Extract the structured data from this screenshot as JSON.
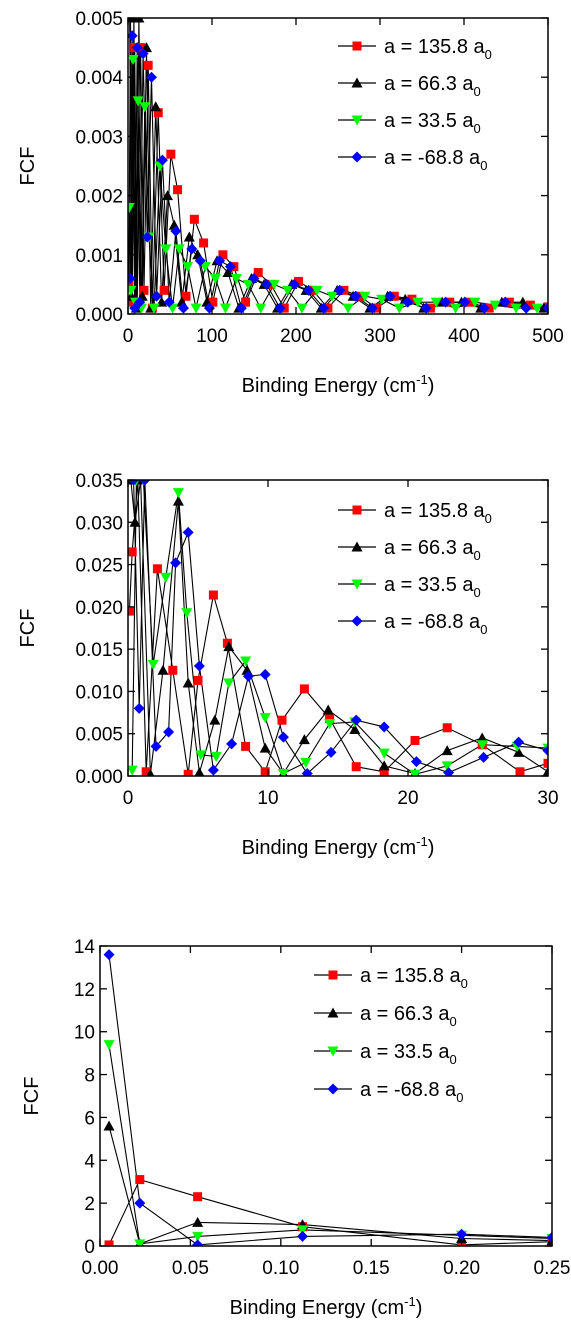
{
  "chart_data": [
    {
      "type": "line",
      "ylabel": "FCF",
      "xlabel": "Binding Energy (cm",
      "xlabel_sup": "-1",
      "xlabel_end": ")",
      "xlim": [
        0,
        500
      ],
      "ylim": [
        0,
        0.005
      ],
      "xticks": [
        0,
        100,
        200,
        300,
        400,
        500
      ],
      "xtick_labels": [
        "0",
        "100",
        "200",
        "300",
        "400",
        "500"
      ],
      "yticks": [
        0,
        0.001,
        0.002,
        0.003,
        0.004,
        0.005
      ],
      "ytick_labels": [
        "0.000",
        "0.001",
        "0.002",
        "0.003",
        "0.004",
        "0.005"
      ],
      "legend_position": "top-right",
      "series": [
        {
          "name": "a = 135.8 a",
          "name_sub": "0",
          "color": "#ff0000",
          "marker": "square",
          "x": [
            1,
            3,
            5,
            8,
            11,
            15,
            19,
            24,
            29,
            36,
            43,
            51,
            59,
            69,
            79,
            90,
            101,
            113,
            126,
            140,
            155,
            170,
            186,
            203,
            220,
            238,
            257,
            276,
            296,
            317,
            338,
            360,
            383,
            406,
            430,
            454,
            479,
            500
          ],
          "y": [
            0.0005,
            0.005,
            0.0002,
            0.0045,
            0.0001,
            0.0045,
            0.0004,
            0.0042,
            0.0001,
            0.0034,
            0.0004,
            0.0027,
            0.0021,
            0.0003,
            0.0016,
            0.0012,
            0.0002,
            0.001,
            0.0008,
            0.0002,
            0.0007,
            0.0005,
            0.0001,
            0.00055,
            0.0004,
            0.0001,
            0.0004,
            0.0003,
            0.0001,
            0.0003,
            0.00025,
            0.0001,
            0.0002,
            0.0002,
            0.0001,
            0.0002,
            0.00015,
            0.00012
          ]
        },
        {
          "name": "a = 66.3 a",
          "name_sub": "0",
          "color": "#000000",
          "marker": "triangle-up",
          "x": [
            2,
            4,
            7,
            10,
            13,
            17,
            22,
            27,
            33,
            40,
            47,
            55,
            64,
            73,
            83,
            94,
            106,
            119,
            132,
            147,
            162,
            178,
            195,
            212,
            230,
            249,
            268,
            288,
            309,
            330,
            352,
            374,
            397,
            420,
            445,
            470,
            495
          ],
          "y": [
            0.005,
            0.0003,
            0.005,
            0.0001,
            0.005,
            0.0003,
            0.0045,
            0.0001,
            0.0035,
            0.0002,
            0.002,
            0.0015,
            0.0002,
            0.0013,
            0.001,
            0.0002,
            0.0009,
            0.0007,
            0.0001,
            0.0006,
            0.0005,
            0.0001,
            0.0005,
            0.0004,
            0.0001,
            0.0004,
            0.0003,
            0.0001,
            0.0003,
            0.00025,
            0.0001,
            0.0002,
            0.0002,
            0.0001,
            0.0002,
            0.0002,
            0.0001
          ]
        },
        {
          "name": "a = 33.5 a",
          "name_sub": "0",
          "color": "#00ff00",
          "marker": "triangle-down",
          "x": [
            1.5,
            3.5,
            6,
            9,
            12,
            16,
            20,
            25,
            31,
            38,
            45,
            53,
            61,
            71,
            81,
            92,
            104,
            116,
            129,
            143,
            158,
            174,
            190,
            207,
            225,
            243,
            262,
            282,
            302,
            323,
            345,
            367,
            390,
            413,
            437,
            462,
            487
          ],
          "y": [
            0.0018,
            0.0004,
            0.0043,
            0.0002,
            0.0036,
            0.0001,
            0.0035,
            0.0013,
            0.0001,
            0.0025,
            0.0011,
            0.0001,
            0.0011,
            0.0008,
            0.0001,
            0.0008,
            0.0006,
            0.0001,
            0.0006,
            0.0005,
            0.0001,
            0.0005,
            0.0004,
            0.0001,
            0.0004,
            0.0003,
            0.0001,
            0.0003,
            0.00025,
            0.0001,
            0.0002,
            0.0002,
            0.0001,
            0.0002,
            0.00015,
            0.0001,
            0.0001
          ]
        },
        {
          "name": "a = -68.8 a",
          "name_sub": "0",
          "color": "#0000ff",
          "marker": "diamond",
          "x": [
            2.5,
            5,
            8,
            11,
            14,
            18,
            23,
            28,
            34,
            41,
            49,
            57,
            66,
            76,
            86,
            97,
            109,
            122,
            135,
            150,
            165,
            181,
            198,
            215,
            233,
            252,
            271,
            291,
            312,
            333,
            355,
            378,
            401,
            424,
            449,
            474,
            500
          ],
          "y": [
            0.0006,
            0.0047,
            0.0001,
            0.0045,
            0.0002,
            0.0044,
            0.0013,
            0.004,
            0.0003,
            0.0026,
            0.0002,
            0.0014,
            0.0001,
            0.0011,
            0.0009,
            0.0001,
            0.0009,
            0.0008,
            0.0001,
            0.0006,
            0.0005,
            0.0001,
            0.0005,
            0.0004,
            0.0001,
            0.0004,
            0.0003,
            0.0001,
            0.0003,
            0.0002,
            0.0001,
            0.0002,
            0.0002,
            0.0001,
            0.0002,
            0.0001,
            0.0001
          ]
        }
      ]
    },
    {
      "type": "line",
      "ylabel": "FCF",
      "xlabel": "Binding Energy (cm",
      "xlabel_sup": "-1",
      "xlabel_end": ")",
      "xlim": [
        0,
        30
      ],
      "ylim": [
        0,
        0.035
      ],
      "xticks": [
        0,
        10,
        20,
        30
      ],
      "xtick_labels": [
        "0",
        "10",
        "20",
        "30"
      ],
      "yticks": [
        0,
        0.005,
        0.01,
        0.015,
        0.02,
        0.025,
        0.03,
        0.035
      ],
      "ytick_labels": [
        "0.000",
        "0.005",
        "0.010",
        "0.015",
        "0.020",
        "0.025",
        "0.030",
        "0.035"
      ],
      "legend_position": "top-right",
      "series": [
        {
          "name": "a = 135.8 a",
          "name_sub": "0",
          "color": "#ff0000",
          "marker": "square",
          "x": [
            0.1,
            0.3,
            0.7,
            1.3,
            2.1,
            3.2,
            4.3,
            5.0,
            6.1,
            7.1,
            8.4,
            9.8,
            11.0,
            12.6,
            14.4,
            16.3,
            18.3,
            20.5,
            22.8,
            25.3,
            28.0,
            30.0
          ],
          "y": [
            0.0195,
            0.0265,
            0.035,
            0.0005,
            0.0245,
            0.0125,
            0.0002,
            0.0113,
            0.0214,
            0.0157,
            0.0035,
            0.0005,
            0.0066,
            0.0103,
            0.0068,
            0.0011,
            0.0005,
            0.0042,
            0.0057,
            0.0037,
            0.0005,
            0.0015
          ]
        },
        {
          "name": "a = 66.3 a",
          "name_sub": "0",
          "color": "#000000",
          "marker": "triangle-up",
          "x": [
            0.2,
            0.5,
            0.9,
            1.6,
            2.5,
            3.6,
            4.3,
            5.1,
            6.2,
            7.2,
            8.5,
            9.8,
            11.1,
            12.6,
            14.3,
            16.2,
            18.3,
            20.5,
            22.8,
            25.3,
            27.9,
            30.0
          ],
          "y": [
            0.035,
            0.03,
            0.035,
            0.0002,
            0.0125,
            0.0325,
            0.011,
            0.0004,
            0.0066,
            0.0153,
            0.0125,
            0.0033,
            0.0003,
            0.0043,
            0.0078,
            0.0055,
            0.0012,
            0.0003,
            0.003,
            0.0045,
            0.0028,
            0.0005
          ]
        },
        {
          "name": "a = 33.5 a",
          "name_sub": "0",
          "color": "#00ff00",
          "marker": "triangle-down",
          "x": [
            0.3,
            0.6,
            1.1,
            1.8,
            2.7,
            3.6,
            4.2,
            5.2,
            6.3,
            7.2,
            8.4,
            9.8,
            11.1,
            12.7,
            14.4,
            16.2,
            18.3,
            20.5,
            22.8,
            25.3,
            27.8,
            30.0
          ],
          "y": [
            0.0007,
            0.035,
            0.035,
            0.0132,
            0.0235,
            0.0335,
            0.0193,
            0.0025,
            0.0023,
            0.011,
            0.0136,
            0.0069,
            0.0003,
            0.0016,
            0.0062,
            0.0064,
            0.0027,
            0.0002,
            0.0012,
            0.0037,
            0.0035,
            0.0033
          ]
        },
        {
          "name": "a = -68.8 a",
          "name_sub": "0",
          "color": "#0000ff",
          "marker": "diamond",
          "x": [
            0.4,
            0.8,
            1.2,
            2.0,
            2.9,
            3.4,
            4.3,
            5.1,
            6.1,
            7.4,
            8.6,
            9.8,
            11.1,
            12.8,
            14.5,
            16.3,
            18.3,
            20.6,
            22.9,
            25.4,
            27.9,
            30.0
          ],
          "y": [
            0.035,
            0.008,
            0.035,
            0.0035,
            0.0052,
            0.0252,
            0.0288,
            0.013,
            0.0007,
            0.0038,
            0.0118,
            0.012,
            0.0046,
            0.0003,
            0.0028,
            0.0066,
            0.0058,
            0.0017,
            0.0004,
            0.0022,
            0.004,
            0.003
          ]
        }
      ]
    },
    {
      "type": "line",
      "ylabel": "FCF",
      "xlabel": "Binding Energy (cm",
      "xlabel_sup": "-1",
      "xlabel_end": ")",
      "xlim": [
        0,
        0.25
      ],
      "ylim": [
        0,
        14
      ],
      "xticks": [
        0,
        0.05,
        0.1,
        0.15,
        0.2,
        0.25
      ],
      "xtick_labels": [
        "0.00",
        "0.05",
        "0.10",
        "0.15",
        "0.20",
        "0.25"
      ],
      "yticks": [
        0,
        2,
        4,
        6,
        8,
        10,
        12,
        14
      ],
      "ytick_labels": [
        "0",
        "2",
        "4",
        "6",
        "8",
        "10",
        "12",
        "14"
      ],
      "legend_position": "top-right",
      "series": [
        {
          "name": "a = 135.8 a",
          "name_sub": "0",
          "color": "#ff0000",
          "marker": "square",
          "x": [
            0.005,
            0.022,
            0.054,
            0.112,
            0.2,
            0.25
          ],
          "y": [
            0.05,
            3.1,
            2.3,
            0.9,
            0.05,
            0.2
          ]
        },
        {
          "name": "a = 66.3 a",
          "name_sub": "0",
          "color": "#000000",
          "marker": "triangle-up",
          "x": [
            0.005,
            0.022,
            0.054,
            0.112,
            0.2,
            0.25
          ],
          "y": [
            5.6,
            0.1,
            1.1,
            1.0,
            0.35,
            0.25
          ]
        },
        {
          "name": "a = 33.5 a",
          "name_sub": "0",
          "color": "#00ff00",
          "marker": "triangle-down",
          "x": [
            0.005,
            0.022,
            0.054,
            0.112,
            0.2,
            0.25
          ],
          "y": [
            9.4,
            0.1,
            0.45,
            0.75,
            0.5,
            0.35
          ]
        },
        {
          "name": "a = -68.8 a",
          "name_sub": "0",
          "color": "#0000ff",
          "marker": "diamond",
          "x": [
            0.005,
            0.022,
            0.054,
            0.112,
            0.2,
            0.25
          ],
          "y": [
            13.6,
            2.0,
            0.05,
            0.45,
            0.55,
            0.4
          ]
        }
      ]
    }
  ]
}
